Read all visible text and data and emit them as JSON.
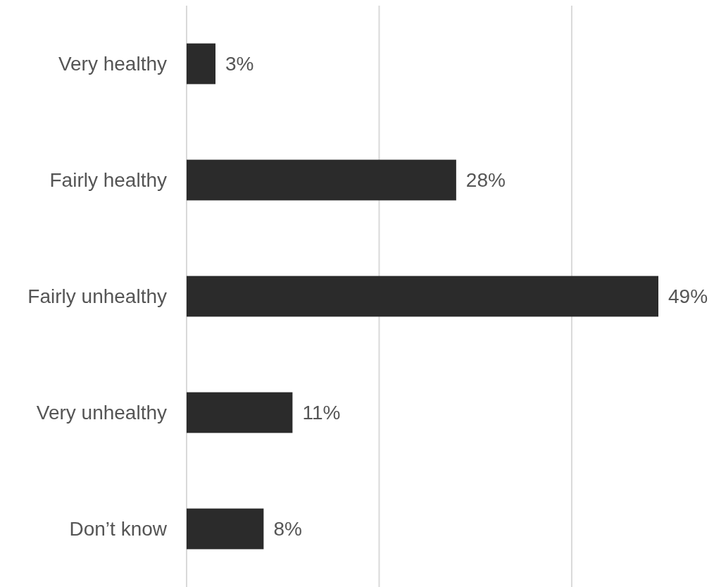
{
  "chart_data": {
    "type": "bar",
    "orientation": "horizontal",
    "categories": [
      "Very healthy",
      "Fairly healthy",
      "Fairly unhealthy",
      "Very unhealthy",
      "Don’t know"
    ],
    "values": [
      3,
      28,
      49,
      11,
      8
    ],
    "value_labels": [
      "3%",
      "28%",
      "49%",
      "11%",
      "8%"
    ],
    "color": "#2b2b2b",
    "ref_lines": [
      {
        "axis": "x",
        "value": 0,
        "color": "#d9d9d9"
      },
      {
        "axis": "x",
        "value": 20,
        "color": "#d9d9d9"
      },
      {
        "axis": "x",
        "value": 40,
        "color": "#d9d9d9"
      }
    ],
    "tick_labels": "y"
  }
}
